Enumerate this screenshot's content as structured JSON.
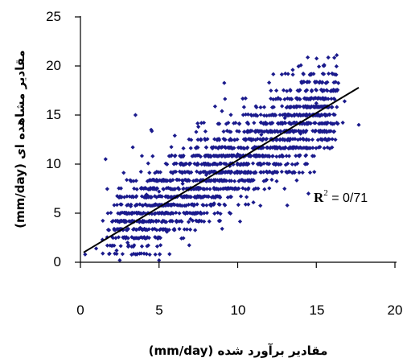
{
  "chart_data": {
    "type": "scatter",
    "xlabel": "مقادیر برآورد شده (mm/day)",
    "ylabel": "مقادیر مشاهده ای (mm/day)",
    "xlim": [
      0,
      20
    ],
    "ylim": [
      0,
      25
    ],
    "x_ticks": [
      "0",
      "5",
      "10",
      "15",
      "20"
    ],
    "y_ticks": [
      "0",
      "5",
      "10",
      "15",
      "20",
      "25"
    ],
    "grid": false,
    "marker_color": "#1a1a8c",
    "trendline": {
      "x": [
        0.2,
        17.7
      ],
      "y": [
        1.0,
        17.8
      ],
      "color": "#000000"
    },
    "annotation": {
      "r_label": "R",
      "r_exp": "2",
      "text": " = 0/71"
    },
    "point_count": 1800,
    "points_sample": [
      [
        0.3,
        0.8
      ],
      [
        1.0,
        1.4
      ],
      [
        1.4,
        2.3
      ],
      [
        1.6,
        10.5
      ],
      [
        2.0,
        2.6
      ],
      [
        2.3,
        1.2
      ],
      [
        2.5,
        0.2
      ],
      [
        2.8,
        4.1
      ],
      [
        3.0,
        2.0
      ],
      [
        3.2,
        5.7
      ],
      [
        3.5,
        15.0
      ],
      [
        3.8,
        3.5
      ],
      [
        4.2,
        6.9
      ],
      [
        4.5,
        13.5
      ],
      [
        5.0,
        7.2
      ],
      [
        5.0,
        0.2
      ],
      [
        5.5,
        3.1
      ],
      [
        6.0,
        12.9
      ],
      [
        6.5,
        8.0
      ],
      [
        7.0,
        4.4
      ],
      [
        7.5,
        13.8
      ],
      [
        8.0,
        8.9
      ],
      [
        8.5,
        6.0
      ],
      [
        9.0,
        15.4
      ],
      [
        9.5,
        9.8
      ],
      [
        10.0,
        11.0
      ],
      [
        10.5,
        16.7
      ],
      [
        11.0,
        6.1
      ],
      [
        11.5,
        13.0
      ],
      [
        12.0,
        18.3
      ],
      [
        12.5,
        9.2
      ],
      [
        13.0,
        14.7
      ],
      [
        13.5,
        19.6
      ],
      [
        14.0,
        13.1
      ],
      [
        14.5,
        7.0
      ],
      [
        15.0,
        16.2
      ],
      [
        15.5,
        20.1
      ],
      [
        16.0,
        11.7
      ],
      [
        16.3,
        21.1
      ],
      [
        16.8,
        16.4
      ],
      [
        17.7,
        14.0
      ]
    ]
  }
}
